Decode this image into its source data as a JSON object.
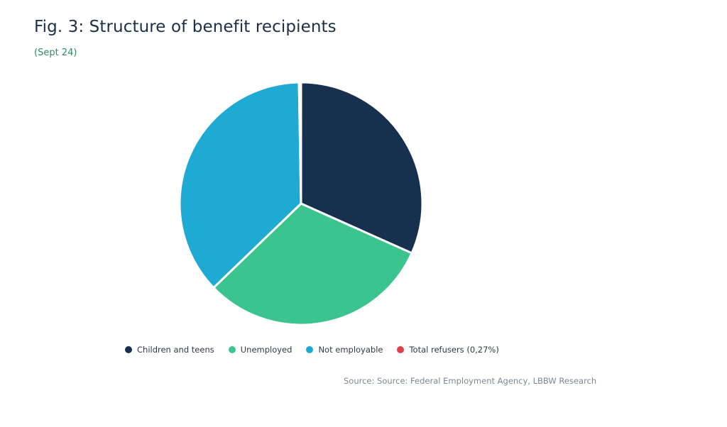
{
  "chart_data": {
    "type": "pie",
    "title": "Fig. 3: Structure of benefit recipients",
    "subtitle": "(Sept 24)",
    "categories": [
      "Children and teens",
      "Unemployed",
      "Not employable",
      "Total refusers (0,27%)"
    ],
    "values": [
      31.7,
      31.1,
      36.93,
      0.27
    ],
    "colors": [
      "#17304d",
      "#3cc48f",
      "#1eaad3",
      "#e0404a"
    ],
    "legend_position": "bottom",
    "source": "Source: Source: Federal Employment Agency, LBBW Research"
  }
}
